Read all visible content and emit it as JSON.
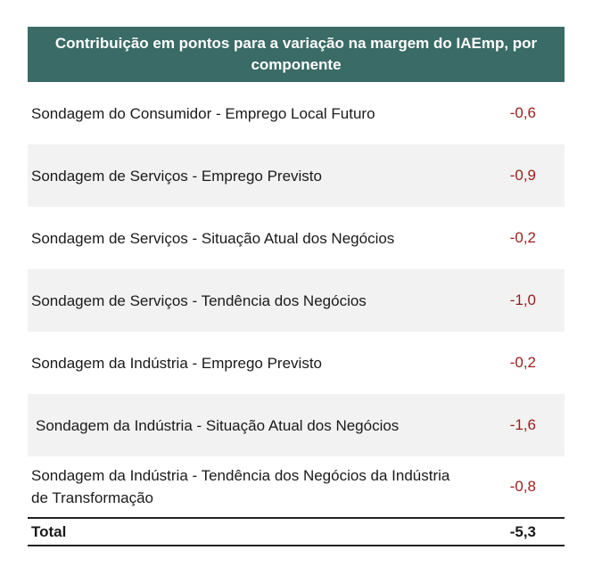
{
  "table": {
    "title": "Contribuição em pontos para a variação na margem do IAEmp, por componente",
    "rows": [
      {
        "label": "Sondagem do Consumidor - Emprego Local Futuro",
        "value": "-0,6"
      },
      {
        "label": "Sondagem de Serviços - Emprego Previsto",
        "value": "-0,9"
      },
      {
        "label": "Sondagem de Serviços - Situação Atual dos Negócios",
        "value": "-0,2"
      },
      {
        "label": "Sondagem de Serviços - Tendência dos Negócios",
        "value": "-1,0"
      },
      {
        "label": "Sondagem da Indústria - Emprego Previsto",
        "value": "-0,2"
      },
      {
        "label": "Sondagem da Indústria - Situação Atual dos Negócios",
        "value": "-1,6"
      },
      {
        "label": "Sondagem da Indústria - Tendência dos Negócios da Indústria de Transformação",
        "value": "-0,8"
      }
    ],
    "total": {
      "label": "Total",
      "value": "-5,3"
    }
  },
  "colors": {
    "header_bg": "#3a6b66",
    "header_text": "#ffffff",
    "negative_value": "#9b1c1c",
    "shaded_row": "#f2f2f2"
  }
}
